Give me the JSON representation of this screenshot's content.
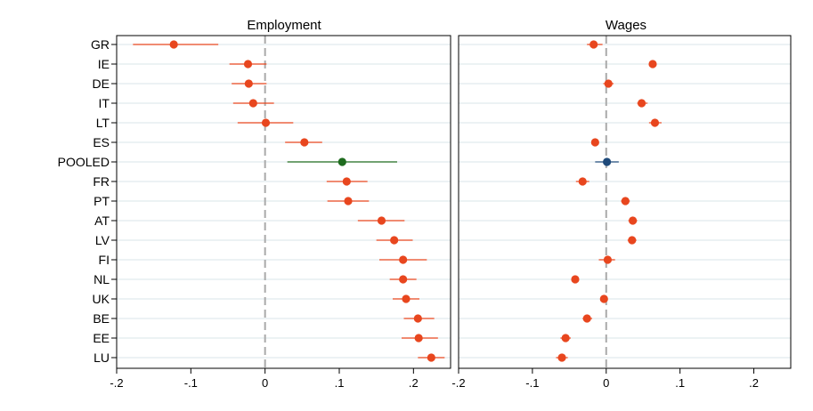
{
  "chart_data": [
    {
      "type": "scatter",
      "title": "Employment",
      "xlim": [
        -0.2,
        0.25
      ],
      "ticks": [
        -0.2,
        -0.1,
        0,
        0.1,
        0.2
      ],
      "tick_labels": [
        "-.2",
        "-.1",
        "0",
        ".1",
        ".2"
      ],
      "reference_line": 0,
      "grid": true,
      "categories": [
        "GR",
        "IE",
        "DE",
        "IT",
        "LT",
        "ES",
        "POOLED",
        "FR",
        "PT",
        "AT",
        "LV",
        "FI",
        "NL",
        "UK",
        "BE",
        "EE",
        "LU"
      ],
      "values": [
        -0.123,
        -0.023,
        -0.022,
        -0.016,
        0.001,
        0.053,
        0.104,
        0.11,
        0.112,
        0.157,
        0.174,
        0.186,
        0.186,
        0.19,
        0.206,
        0.207,
        0.224
      ],
      "ci_low": [
        -0.178,
        -0.048,
        -0.045,
        -0.043,
        -0.037,
        0.027,
        0.03,
        0.083,
        0.084,
        0.125,
        0.15,
        0.154,
        0.168,
        0.172,
        0.187,
        0.184,
        0.206
      ],
      "ci_high": [
        -0.063,
        0.002,
        0.002,
        0.012,
        0.038,
        0.077,
        0.178,
        0.138,
        0.14,
        0.188,
        0.199,
        0.218,
        0.204,
        0.208,
        0.228,
        0.233,
        0.242
      ]
    },
    {
      "type": "scatter",
      "title": "Wages",
      "xlim": [
        -0.2,
        0.25
      ],
      "ticks": [
        -0.2,
        -0.1,
        0,
        0.1,
        0.2
      ],
      "tick_labels": [
        "-.2",
        "-.1",
        "0",
        ".1",
        ".2"
      ],
      "reference_line": 0,
      "grid": true,
      "categories": [
        "GR",
        "IE",
        "DE",
        "IT",
        "LT",
        "ES",
        "POOLED",
        "FR",
        "PT",
        "AT",
        "LV",
        "FI",
        "NL",
        "UK",
        "BE",
        "EE",
        "LU"
      ],
      "values": [
        -0.017,
        0.063,
        0.003,
        0.048,
        0.066,
        -0.015,
        0.001,
        -0.032,
        0.026,
        0.036,
        0.035,
        0.002,
        -0.042,
        -0.003,
        -0.026,
        -0.055,
        -0.06
      ],
      "ci_low": [
        -0.026,
        0.06,
        -0.004,
        0.042,
        0.058,
        -0.019,
        -0.015,
        -0.041,
        0.02,
        0.03,
        0.029,
        -0.01,
        -0.045,
        -0.006,
        -0.032,
        -0.062,
        -0.068
      ],
      "ci_high": [
        -0.005,
        0.068,
        0.01,
        0.056,
        0.075,
        -0.011,
        0.017,
        -0.023,
        0.032,
        0.042,
        0.041,
        0.012,
        -0.038,
        0.001,
        -0.019,
        -0.048,
        -0.052
      ]
    }
  ],
  "colors": {
    "country": "#e8461e",
    "pooled_employment": "#1e6b1e",
    "pooled_wages": "#1f4a7a",
    "reference_line": "#aaaaaa",
    "grid": "#d9e4ea",
    "frame": "#000000"
  },
  "highlight_category": "POOLED"
}
